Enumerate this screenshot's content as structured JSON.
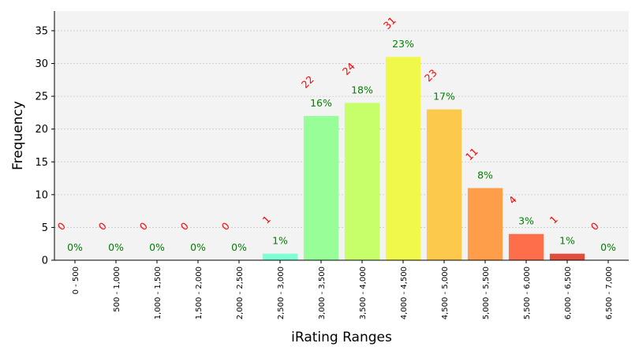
{
  "chart_data": {
    "type": "bar",
    "title": "",
    "xlabel": "iRating Ranges",
    "ylabel": "Frequency",
    "categories": [
      "0 - 500",
      "500 - 1,000",
      "1,000 - 1,500",
      "1,500 - 2,000",
      "2,000 - 2,500",
      "2,500 - 3,000",
      "3,000 - 3,500",
      "3,500 - 4,000",
      "4,000 - 4,500",
      "4,500 - 5,000",
      "5,000 - 5,500",
      "5,500 - 6,000",
      "6,000 - 6,500",
      "6,500 - 7,000"
    ],
    "values": [
      0,
      0,
      0,
      0,
      0,
      1,
      22,
      24,
      31,
      23,
      11,
      4,
      1,
      0
    ],
    "count_labels": [
      "0",
      "0",
      "0",
      "0",
      "0",
      "1",
      "22",
      "24",
      "31",
      "23",
      "11",
      "4",
      "1",
      "0"
    ],
    "percent_labels": [
      "0%",
      "0%",
      "0%",
      "0%",
      "0%",
      "1%",
      "16%",
      "18%",
      "23%",
      "17%",
      "8%",
      "3%",
      "1%",
      "0%"
    ],
    "bar_colors": [
      "#7fffd4",
      "#7fffd4",
      "#7fffd4",
      "#7fffd4",
      "#7fffd4",
      "#7fffd4",
      "#98ff98",
      "#c6ff6a",
      "#f0f84a",
      "#fdc94c",
      "#ff9e4a",
      "#ff6e4a",
      "#e04e3e",
      "#e04e3e"
    ],
    "count_label_color": "#ff0000",
    "percent_label_color": "#008000",
    "ylim": [
      0,
      38
    ],
    "yticks": [
      0,
      5,
      10,
      15,
      20,
      25,
      30,
      35
    ],
    "grid": true,
    "plot_background": "#f3f3f3"
  }
}
